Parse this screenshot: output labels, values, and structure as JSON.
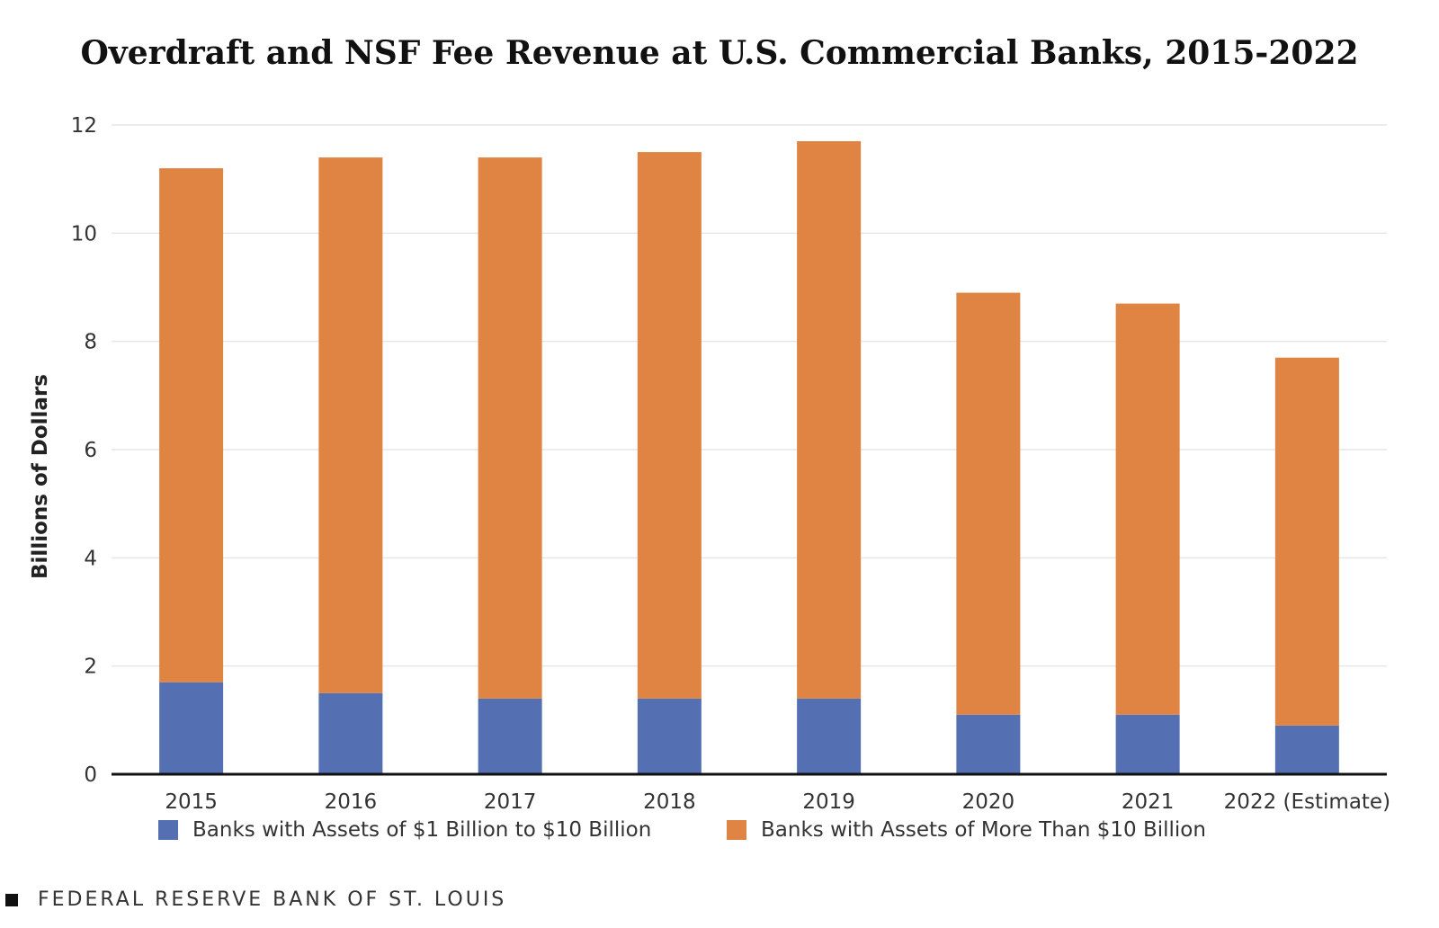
{
  "chart_data": {
    "type": "bar",
    "stacked": true,
    "title": "Overdraft and NSF Fee Revenue at U.S. Commercial Banks, 2015-2022",
    "ylabel": "Billions of Dollars",
    "xlabel": "",
    "ylim": [
      0,
      12
    ],
    "yticks": [
      "0",
      "2",
      "4",
      "6",
      "8",
      "10",
      "12"
    ],
    "grid": true,
    "legend_position": "bottom",
    "categories": [
      "2015",
      "2016",
      "2017",
      "2018",
      "2019",
      "2020",
      "2021",
      "2022 (Estimate)"
    ],
    "series": [
      {
        "name": "Banks with Assets of $1 Billion to $10 Billion",
        "color": "#5470b2",
        "values": [
          1.7,
          1.5,
          1.4,
          1.4,
          1.4,
          1.1,
          1.1,
          0.9
        ]
      },
      {
        "name": "Banks with Assets of More Than $10 Billion",
        "color": "#df8443",
        "values": [
          9.5,
          9.9,
          10.0,
          10.1,
          10.3,
          7.8,
          7.6,
          6.8
        ]
      }
    ]
  },
  "source": "FEDERAL RESERVE BANK OF ST. LOUIS"
}
